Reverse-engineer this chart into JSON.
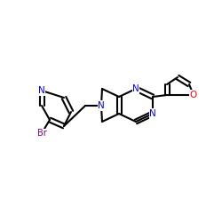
{
  "background_color": "#ffffff",
  "bond_color": "#000000",
  "bond_lw": 1.5,
  "N_color": "#0000ff",
  "O_color": "#ff0000",
  "Br_color": "#800080",
  "font_size": 7.5,
  "font_size_br": 7.0,
  "xlim": [
    0,
    250
  ],
  "ylim": [
    0,
    250
  ]
}
